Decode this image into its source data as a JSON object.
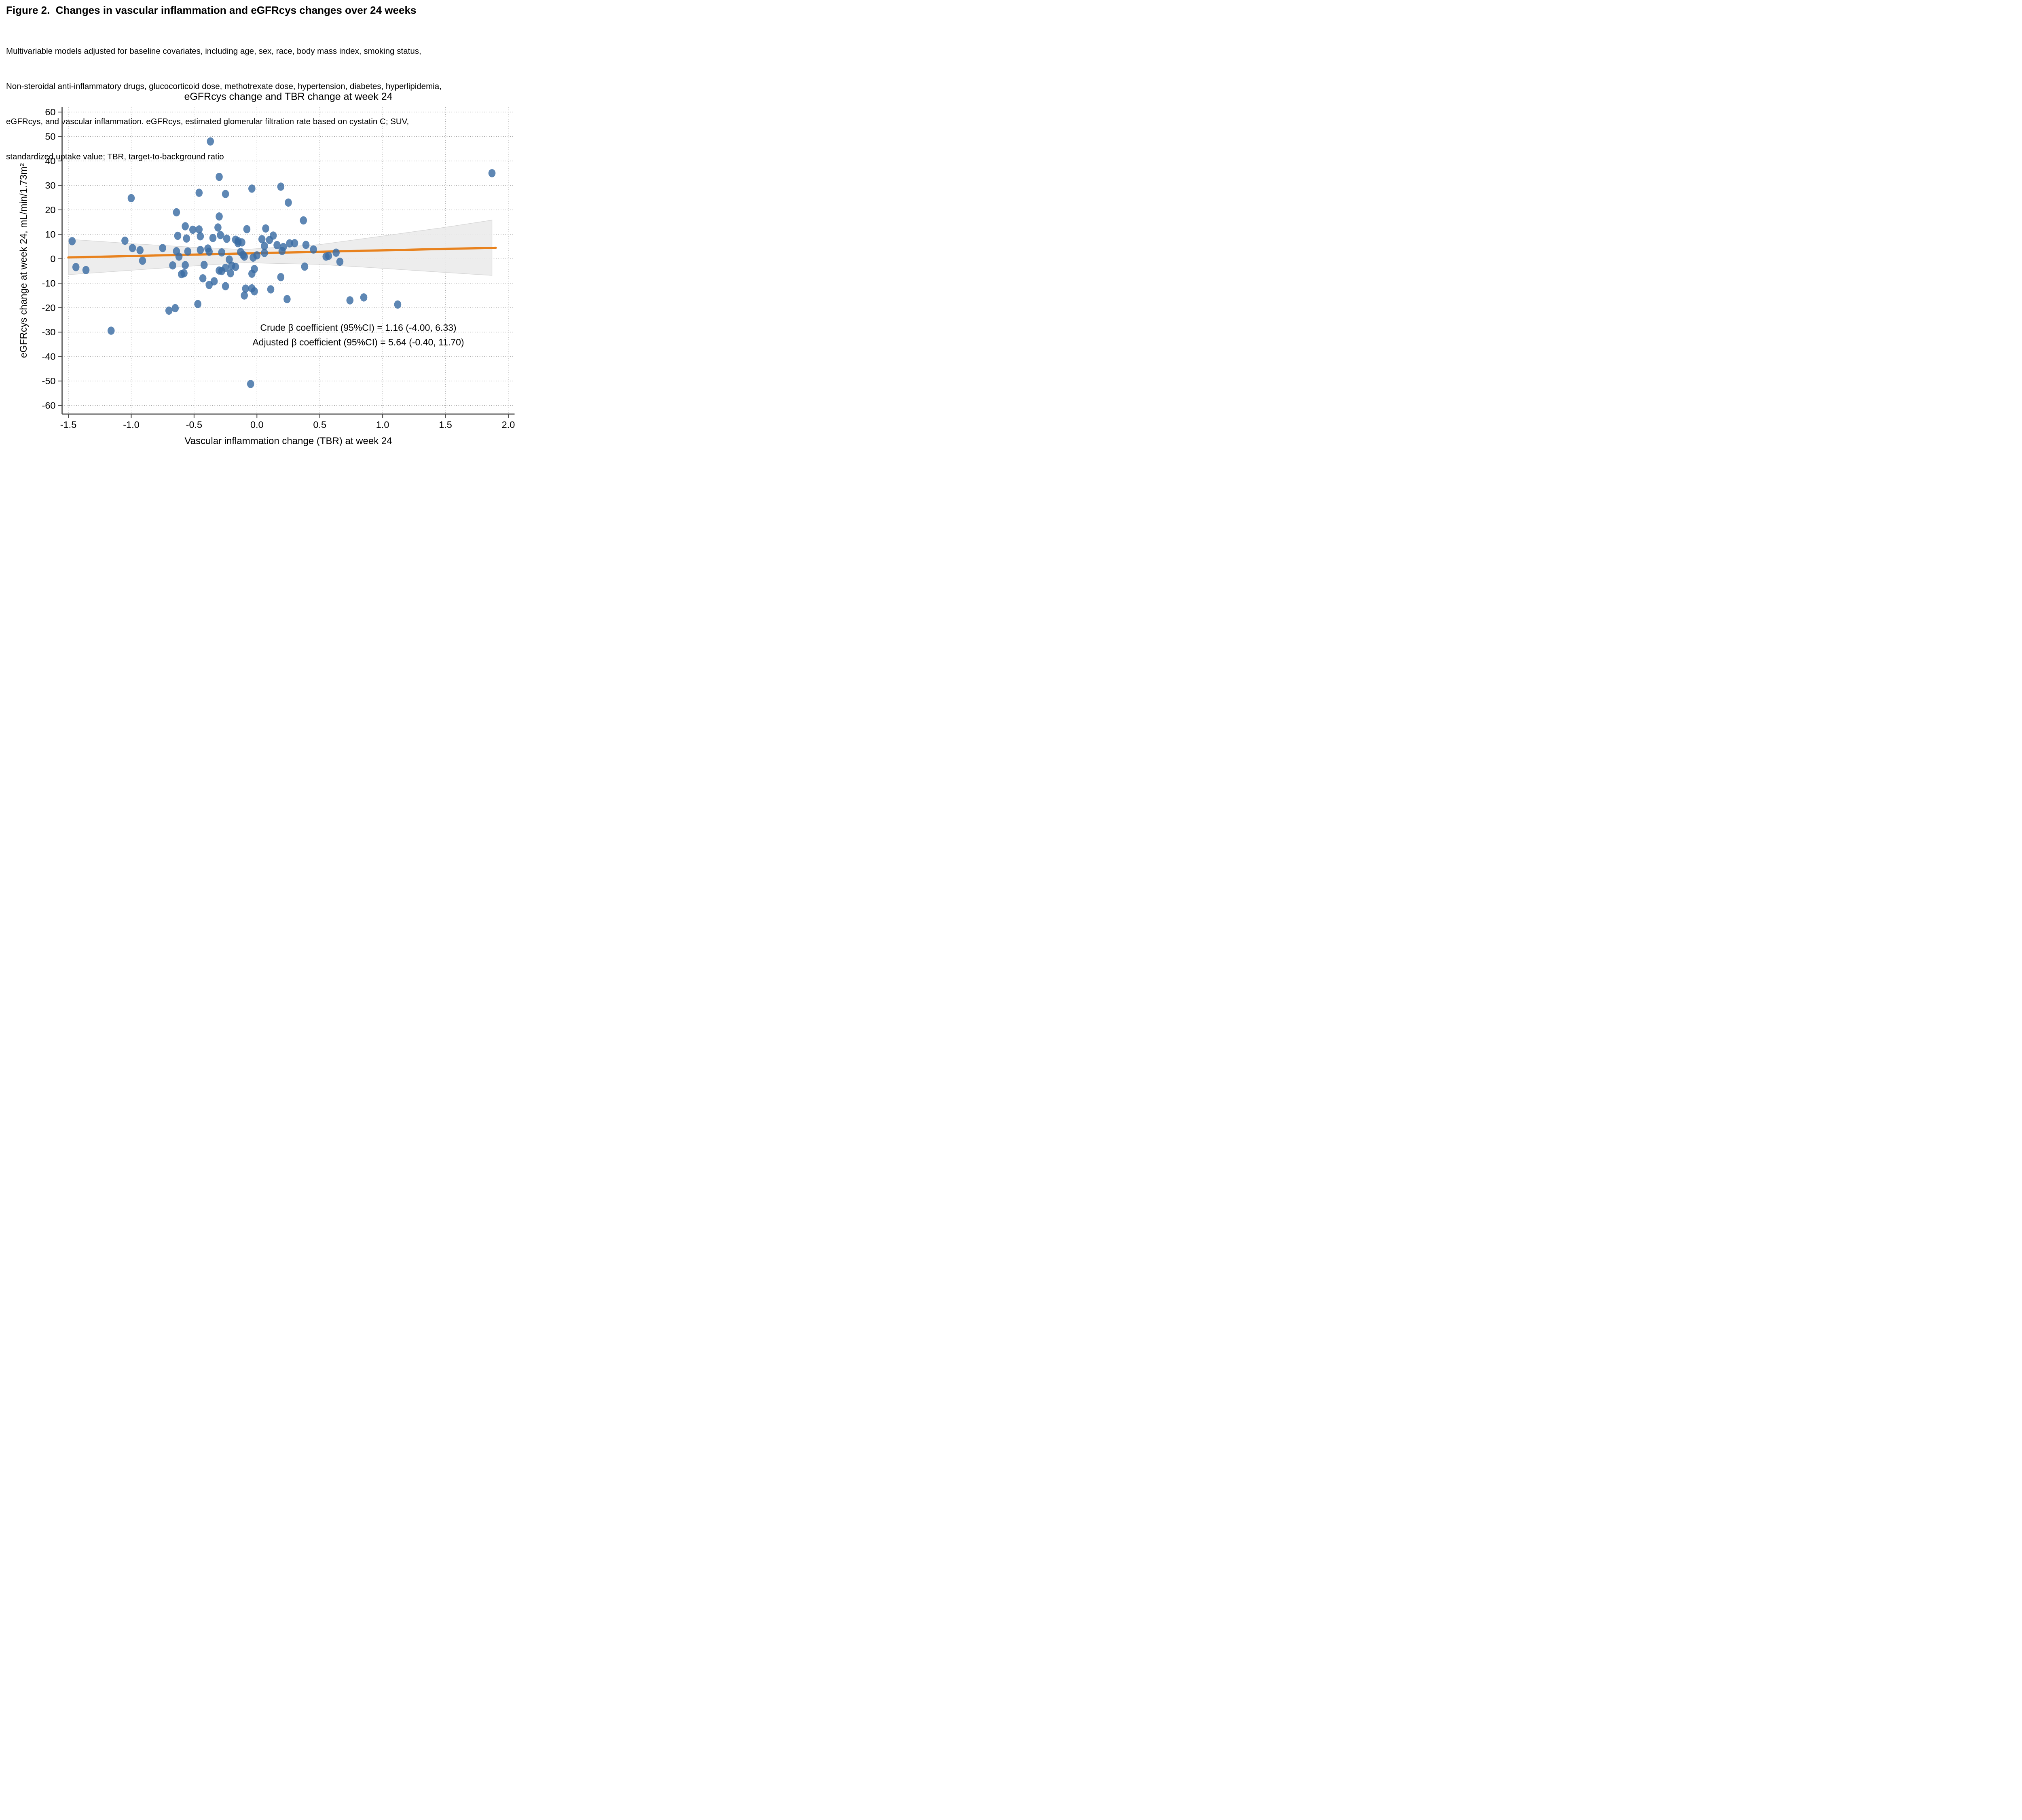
{
  "figure": {
    "title": "Figure 2.  Changes in vascular inflammation and eGFRcys changes over 24 weeks",
    "caption": {
      "line1": "Multivariable models adjusted for baseline covariates, including age, sex, race, body mass index, smoking status,",
      "line2": "Non-steroidal anti-inflammatory drugs, glucocorticoid dose, methotrexate dose, hypertension, diabetes, hyperlipidemia,",
      "line3": "eGFRcys, and vascular inflammation. eGFRcys, estimated glomerular filtration rate based on cystatin C; SUV,",
      "line4": "standardized uptake value; TBR, target-to-background ratio"
    }
  },
  "chart_data": {
    "type": "scatter",
    "title": "eGFRcys change and TBR change at week 24",
    "xlabel": "Vascular inflammation change (TBR) at week 24",
    "ylabel": "eGFRcys change at week 24, mL/min/1.73m²",
    "xlim": [
      -1.55,
      2.05
    ],
    "ylim": [
      -63.5,
      62
    ],
    "x_ticks": [
      "-1.5",
      "-1.0",
      "-0.5",
      "0.0",
      "0.5",
      "1.0",
      "1.5",
      "2.0"
    ],
    "x_tick_values": [
      -1.5,
      -1.0,
      -0.5,
      0.0,
      0.5,
      1.0,
      1.5,
      2.0
    ],
    "y_ticks": [
      "60",
      "50",
      "40",
      "30",
      "20",
      "10",
      "0",
      "-10",
      "-20",
      "-30",
      "-40",
      "-50",
      "-60"
    ],
    "y_tick_values": [
      60,
      50,
      40,
      30,
      20,
      10,
      0,
      -10,
      -20,
      -30,
      -40,
      -50,
      -60
    ],
    "grid": true,
    "legend": "none",
    "points": [
      [
        -1.47,
        7.2
      ],
      [
        -1.44,
        -3.4
      ],
      [
        -1.36,
        -4.6
      ],
      [
        -1.16,
        -29.4
      ],
      [
        -1.0,
        24.8
      ],
      [
        -1.05,
        7.4
      ],
      [
        -0.99,
        4.4
      ],
      [
        -0.93,
        3.5
      ],
      [
        -0.91,
        -0.8
      ],
      [
        -0.75,
        4.4
      ],
      [
        -0.64,
        19.0
      ],
      [
        -0.63,
        9.4
      ],
      [
        -0.64,
        3.1
      ],
      [
        -0.62,
        0.9
      ],
      [
        -0.6,
        -6.3
      ],
      [
        -0.58,
        -5.9
      ],
      [
        -0.57,
        13.3
      ],
      [
        -0.56,
        8.3
      ],
      [
        -0.51,
        11.9
      ],
      [
        -0.46,
        12.0
      ],
      [
        -0.46,
        27.0
      ],
      [
        -0.37,
        48.0
      ],
      [
        -0.45,
        9.2
      ],
      [
        -0.35,
        8.5
      ],
      [
        -0.29,
        9.7
      ],
      [
        -0.24,
        8.2
      ],
      [
        -0.17,
        7.8
      ],
      [
        -0.15,
        7.2
      ],
      [
        -0.12,
        6.7
      ],
      [
        -0.31,
        12.8
      ],
      [
        -0.08,
        12.1
      ],
      [
        -0.3,
        33.5
      ],
      [
        -0.25,
        26.5
      ],
      [
        -0.3,
        17.3
      ],
      [
        -0.42,
        -2.5
      ],
      [
        -0.57,
        -2.6
      ],
      [
        -0.67,
        -2.7
      ],
      [
        -0.55,
        3.0
      ],
      [
        -0.45,
        3.6
      ],
      [
        -0.39,
        4.2
      ],
      [
        -0.38,
        2.9
      ],
      [
        -0.28,
        2.6
      ],
      [
        -0.13,
        2.8
      ],
      [
        -0.1,
        0.9
      ],
      [
        -0.22,
        -0.3
      ],
      [
        -0.2,
        -2.8
      ],
      [
        -0.17,
        -3.3
      ],
      [
        -0.3,
        -4.8
      ],
      [
        -0.25,
        -3.7
      ],
      [
        -0.21,
        -5.9
      ],
      [
        -0.28,
        -5.0
      ],
      [
        -0.43,
        -8.0
      ],
      [
        -0.38,
        -10.7
      ],
      [
        -0.34,
        -9.2
      ],
      [
        -0.25,
        -11.2
      ],
      [
        -0.47,
        -18.5
      ],
      [
        -0.65,
        -20.2
      ],
      [
        -0.7,
        -21.2
      ],
      [
        -0.15,
        6.4
      ],
      [
        -0.11,
        1.6
      ],
      [
        -0.04,
        28.7
      ],
      [
        -0.05,
        -51.2
      ],
      [
        0.0,
        1.4
      ],
      [
        -0.03,
        0.5
      ],
      [
        -0.02,
        -4.2
      ],
      [
        -0.04,
        -6.1
      ],
      [
        -0.09,
        -12.2
      ],
      [
        -0.04,
        -12.1
      ],
      [
        -0.02,
        -13.3
      ],
      [
        -0.1,
        -15.0
      ],
      [
        0.07,
        12.4
      ],
      [
        0.04,
        8.0
      ],
      [
        0.1,
        7.7
      ],
      [
        0.13,
        9.5
      ],
      [
        0.06,
        5.2
      ],
      [
        0.06,
        2.4
      ],
      [
        0.19,
        29.5
      ],
      [
        0.25,
        23.0
      ],
      [
        0.37,
        15.7
      ],
      [
        0.16,
        5.6
      ],
      [
        0.21,
        4.8
      ],
      [
        0.2,
        3.2
      ],
      [
        0.26,
        6.3
      ],
      [
        0.3,
        6.4
      ],
      [
        0.39,
        5.7
      ],
      [
        0.45,
        3.8
      ],
      [
        0.55,
        0.9
      ],
      [
        0.57,
        1.2
      ],
      [
        0.63,
        2.5
      ],
      [
        0.66,
        -1.2
      ],
      [
        0.38,
        -3.2
      ],
      [
        0.19,
        -7.5
      ],
      [
        0.11,
        -12.5
      ],
      [
        0.24,
        -16.5
      ],
      [
        0.74,
        -17.0
      ],
      [
        0.85,
        -15.8
      ],
      [
        1.12,
        -18.7
      ],
      [
        1.87,
        35.0
      ]
    ],
    "regression_line": {
      "x": [
        -1.5,
        1.9
      ],
      "y": [
        0.55,
        4.5
      ]
    },
    "ci_band": {
      "x": [
        -1.5,
        -1.0,
        -0.5,
        -0.1,
        0.5,
        1.0,
        1.5,
        1.87
      ],
      "top": [
        8.0,
        6.2,
        4.7,
        3.8,
        5.8,
        9.3,
        12.9,
        15.8
      ],
      "bottom": [
        -6.5,
        -4.7,
        -2.9,
        -1.6,
        -2.3,
        -3.9,
        -5.6,
        -6.8
      ]
    },
    "annotations": [
      "Crude β coefficient (95%CI) =  1.16 (-4.00,  6.33)",
      "Adjusted β coefficient (95%CI) =  5.64 (-0.40, 11.70)"
    ],
    "colors": {
      "point": "#3a6ca4",
      "line": "#e8821e",
      "band_fill": "#ebebeb",
      "band_edge": "#d6d6d6",
      "grid": "#9a9a9a",
      "axis": "#4a4a4a",
      "text": "#000000"
    }
  }
}
